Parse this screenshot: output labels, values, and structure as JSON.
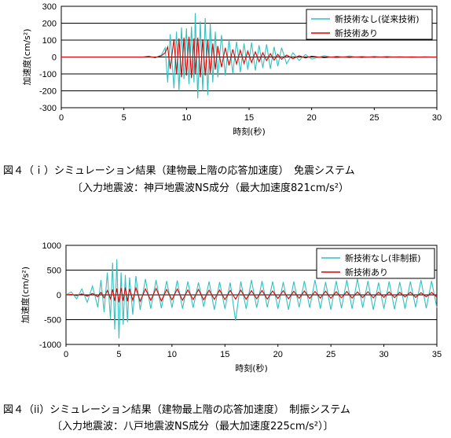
{
  "chart_data": [
    {
      "type": "line",
      "xlabel": "時刻(秒)",
      "ylabel": "加速度(cm/s²)",
      "xlim": [
        0,
        30
      ],
      "ylim": [
        -300,
        300
      ],
      "xticks": [
        0,
        5,
        10,
        15,
        20,
        25,
        30
      ],
      "yticks": [
        300,
        200,
        100,
        0,
        -100,
        -200,
        -300
      ],
      "grid": true,
      "legend_position": "top-right",
      "series": [
        {
          "name": "新技術なし(従来技術)",
          "color": "#33c0c0",
          "x": [
            0,
            5,
            6.5,
            7.0,
            7.5,
            8.0,
            8.3,
            8.5,
            8.7,
            9.0,
            9.2,
            9.4,
            9.6,
            9.8,
            10.0,
            10.2,
            10.4,
            10.6,
            10.7,
            10.9,
            11.1,
            11.3,
            11.5,
            11.7,
            11.9,
            12.1,
            12.3,
            12.5,
            12.8,
            13.1,
            13.4,
            13.7,
            14.0,
            14.3,
            14.6,
            14.9,
            15.2,
            15.5,
            15.8,
            16.1,
            16.4,
            16.7,
            17.0,
            17.3,
            17.6,
            18.0,
            18.5,
            19.0,
            19.5,
            20.0,
            21,
            22,
            23,
            24,
            25,
            26,
            27,
            28,
            29,
            30
          ],
          "values": [
            0,
            0,
            0,
            5,
            -5,
            12,
            55,
            -150,
            135,
            -185,
            150,
            -200,
            175,
            -130,
            170,
            -160,
            180,
            -150,
            260,
            -245,
            210,
            -200,
            230,
            -225,
            200,
            -150,
            150,
            -120,
            130,
            -110,
            100,
            -95,
            90,
            -90,
            80,
            -75,
            85,
            -80,
            70,
            -65,
            75,
            -70,
            60,
            -55,
            55,
            -40,
            25,
            -20,
            15,
            -12,
            8,
            -6,
            6,
            -5,
            4,
            -4,
            3,
            -3,
            2,
            0
          ]
        },
        {
          "name": "新技術あり",
          "color": "#dd0000",
          "x": [
            0,
            5,
            6.5,
            7.0,
            7.5,
            8.0,
            8.3,
            8.5,
            8.7,
            9.0,
            9.2,
            9.4,
            9.6,
            9.8,
            10.0,
            10.2,
            10.4,
            10.6,
            10.7,
            10.9,
            11.1,
            11.3,
            11.5,
            11.7,
            11.9,
            12.1,
            12.3,
            12.5,
            12.8,
            13.1,
            13.4,
            13.7,
            14.0,
            14.3,
            14.6,
            14.9,
            15.2,
            15.5,
            15.8,
            16.1,
            16.4,
            16.7,
            17.0,
            17.3,
            17.6,
            18.0,
            18.5,
            19.0,
            19.5,
            20.0,
            21,
            22,
            23,
            24,
            25,
            26,
            27,
            28,
            29,
            30
          ],
          "values": [
            0,
            0,
            0,
            3,
            -3,
            8,
            25,
            60,
            -70,
            105,
            -100,
            110,
            -120,
            115,
            -110,
            120,
            -125,
            110,
            -100,
            115,
            -120,
            105,
            -110,
            100,
            -95,
            80,
            -75,
            65,
            -60,
            55,
            -50,
            45,
            -42,
            40,
            -38,
            35,
            -33,
            30,
            -28,
            25,
            -22,
            20,
            -18,
            16,
            -14,
            12,
            -10,
            8,
            -6,
            5,
            -4,
            3,
            -3,
            2,
            -2,
            2,
            -1,
            1,
            -1,
            0
          ]
        }
      ]
    },
    {
      "type": "line",
      "xlabel": "時刻(秒)",
      "ylabel": "加速度(cm/s²)",
      "xlim": [
        0,
        35
      ],
      "ylim": [
        -1000,
        1000
      ],
      "xticks": [
        0,
        5,
        10,
        15,
        20,
        25,
        30,
        35
      ],
      "yticks": [
        1000,
        500,
        0,
        -500,
        -1000
      ],
      "grid": true,
      "legend_position": "top-right",
      "series": [
        {
          "name": "新技術なし(非制振)",
          "color": "#33c0c0",
          "x": [
            0,
            0.5,
            1.0,
            1.5,
            2.0,
            2.5,
            3.0,
            3.3,
            3.6,
            3.9,
            4.2,
            4.4,
            4.6,
            4.8,
            5.0,
            5.2,
            5.4,
            5.6,
            5.8,
            6.0,
            6.3,
            6.6,
            7.0,
            7.5,
            8.0,
            8.5,
            9.0,
            9.5,
            10.0,
            10.5,
            11.0,
            11.5,
            12.0,
            12.5,
            13.0,
            13.5,
            14.0,
            14.5,
            15.0,
            15.5,
            16.0,
            16.5,
            17.0,
            17.5,
            18.0,
            18.5,
            19.0,
            19.5,
            20.0,
            20.5,
            21.0,
            21.5,
            22.0,
            22.5,
            23.0,
            23.5,
            24.0,
            24.5,
            25.0,
            25.5,
            26.0,
            26.5,
            27.0,
            27.5,
            28.0,
            28.5,
            29.0,
            29.5,
            30.0,
            30.5,
            31.0,
            31.5,
            32.0,
            32.5,
            33.0,
            33.5,
            34.0,
            34.5,
            35.0
          ],
          "values": [
            0,
            60,
            -80,
            120,
            -150,
            180,
            -250,
            300,
            -350,
            450,
            -500,
            650,
            -700,
            720,
            -880,
            450,
            -600,
            400,
            -550,
            350,
            -400,
            380,
            -300,
            320,
            -280,
            300,
            -270,
            280,
            -260,
            290,
            -280,
            270,
            -260,
            250,
            -240,
            270,
            -300,
            260,
            -280,
            250,
            -520,
            270,
            -280,
            300,
            -260,
            280,
            -250,
            270,
            -280,
            260,
            -300,
            270,
            -250,
            280,
            -260,
            300,
            -280,
            260,
            -300,
            280,
            -270,
            300,
            -280,
            320,
            -260,
            280,
            -300,
            250,
            -280,
            270,
            -290,
            260,
            -280,
            270,
            -250,
            300,
            -270,
            280,
            -260
          ]
        },
        {
          "name": "新技術あり",
          "color": "#dd0000",
          "x": [
            0,
            0.5,
            1.0,
            1.5,
            2.0,
            2.5,
            3.0,
            3.3,
            3.6,
            3.9,
            4.2,
            4.4,
            4.6,
            4.8,
            5.0,
            5.2,
            5.4,
            5.6,
            5.8,
            6.0,
            6.3,
            6.6,
            7.0,
            7.5,
            8.0,
            8.5,
            9.0,
            9.5,
            10.0,
            10.5,
            11.0,
            11.5,
            12.0,
            12.5,
            13.0,
            13.5,
            14.0,
            14.5,
            15.0,
            15.5,
            16.0,
            16.5,
            17.0,
            17.5,
            18.0,
            18.5,
            19.0,
            19.5,
            20.0,
            20.5,
            21.0,
            21.5,
            22.0,
            22.5,
            23.0,
            23.5,
            24.0,
            24.5,
            25.0,
            25.5,
            26.0,
            26.5,
            27.0,
            27.5,
            28.0,
            28.5,
            29.0,
            29.5,
            30.0,
            30.5,
            31.0,
            31.5,
            32.0,
            32.5,
            33.0,
            33.5,
            34.0,
            34.5,
            35.0
          ],
          "values": [
            0,
            10,
            -15,
            20,
            -25,
            30,
            -40,
            50,
            -60,
            90,
            -80,
            110,
            -120,
            130,
            -150,
            140,
            -120,
            150,
            -130,
            120,
            -110,
            140,
            -130,
            120,
            -110,
            130,
            -120,
            110,
            -100,
            120,
            -110,
            100,
            -95,
            110,
            -100,
            95,
            -90,
            100,
            -95,
            90,
            -85,
            95,
            -90,
            85,
            -80,
            90,
            -85,
            80,
            -75,
            85,
            -80,
            75,
            -70,
            80,
            -75,
            70,
            -65,
            75,
            -70,
            65,
            -60,
            70,
            -65,
            60,
            -55,
            65,
            -60,
            55,
            -50,
            60,
            -55,
            50,
            -45,
            55,
            -50,
            45,
            -40,
            50,
            -45
          ]
        }
      ]
    }
  ],
  "captions": {
    "c1_line1": "図４（ｉ）シミュレーション結果（建物最上階の応答加速度）　免震システム",
    "c1_line2": "〔入力地震波：神戸地震波NS成分（最大加速度821cm/s²）",
    "c2_line1": "図４（ii）シミュレーション結果（建物最上階の応答加速度）　制振システム",
    "c2_line2": "〔入力地震波：八戸地震波NS成分（最大加速度225cm/s²）〕"
  }
}
